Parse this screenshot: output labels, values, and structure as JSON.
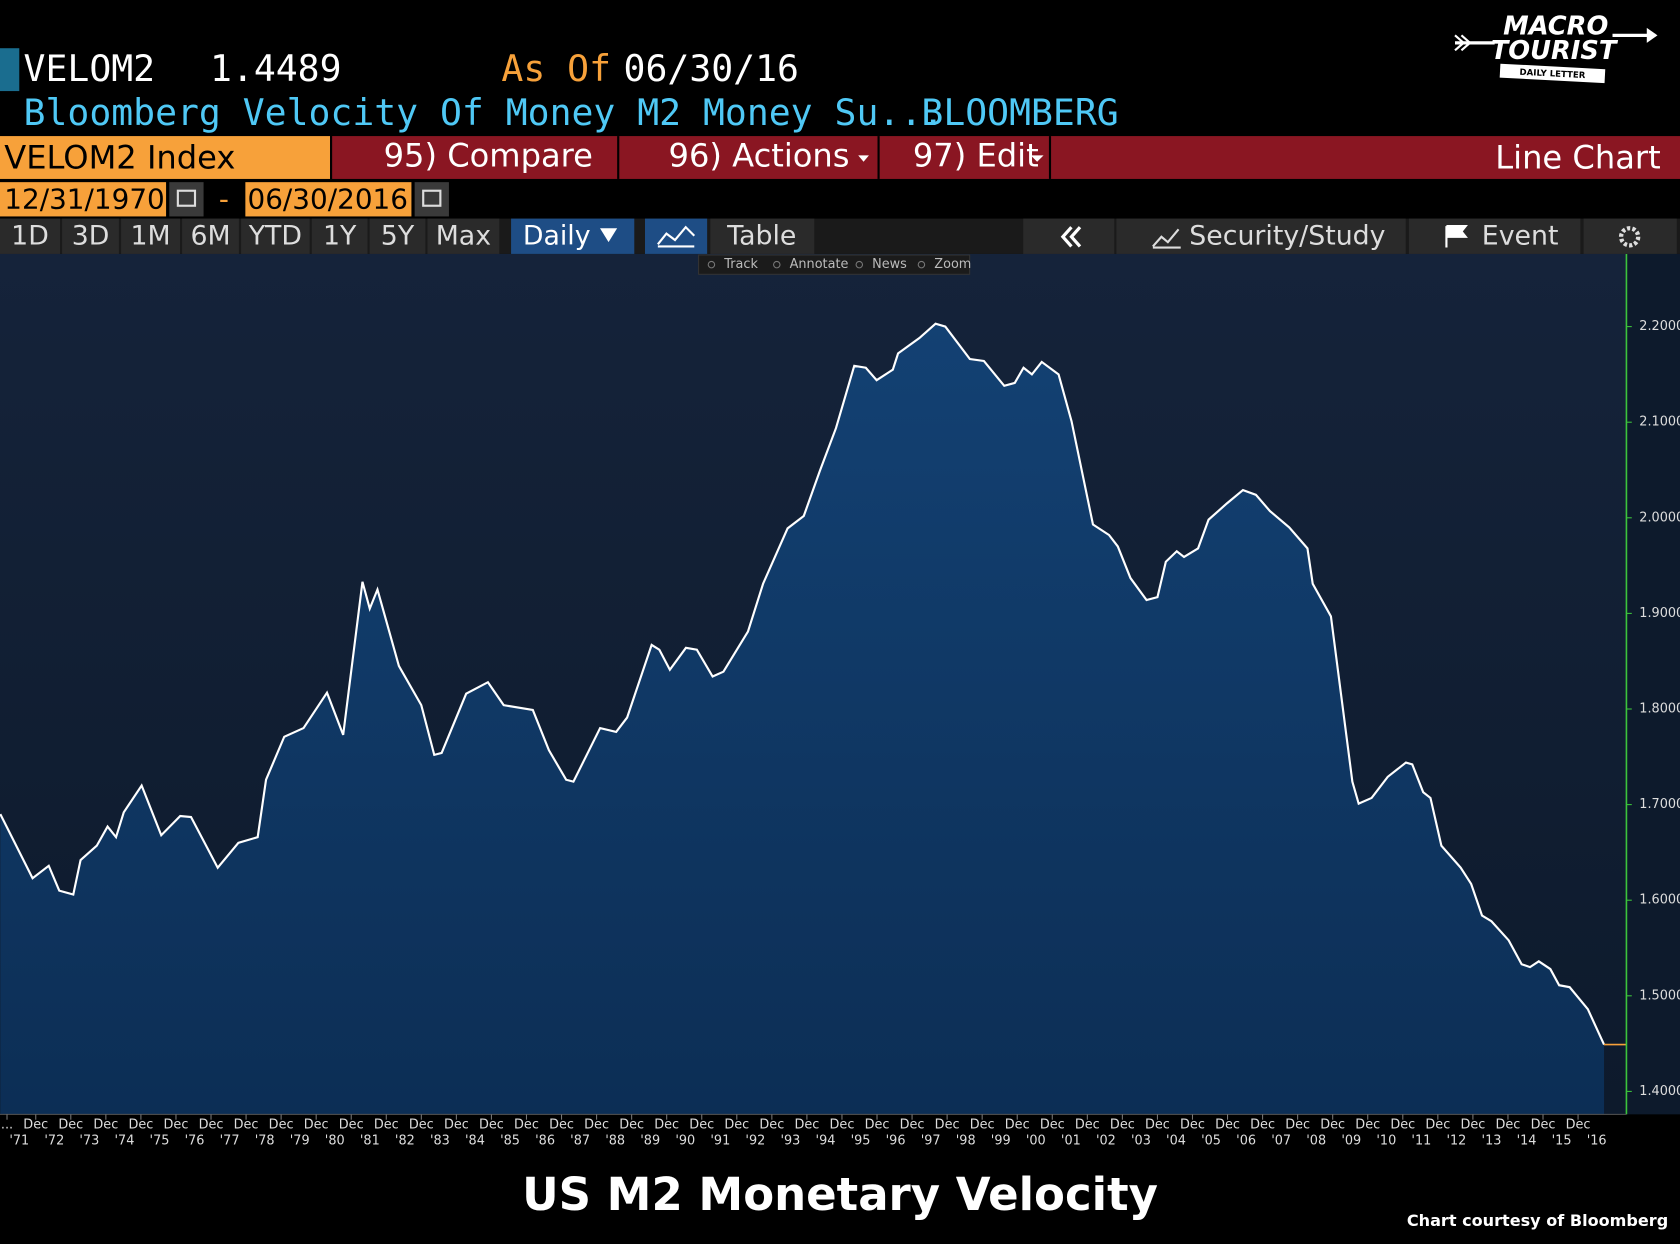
{
  "header": {
    "ticker": "VELOM2",
    "price": "1.4489",
    "as_of_label": "As Of",
    "as_of_date": "06/30/16",
    "description": "Bloomberg Velocity Of Money M2 Money Su...",
    "source": "BLOOMBERG"
  },
  "logo": {
    "line1": "MACRO",
    "line2": "TOURIST",
    "tagline": "DAILY LETTER"
  },
  "toolbar": {
    "security": "VELOM2 Index",
    "buttons": [
      "95) Compare",
      "96) Actions",
      "97) Edit"
    ],
    "view": "Line Chart"
  },
  "date_range": {
    "start": "12/31/1970",
    "separator": "-",
    "end": "06/30/2016"
  },
  "periods": [
    "1D",
    "3D",
    "1M",
    "6M",
    "YTD",
    "1Y",
    "5Y",
    "Max"
  ],
  "frequency": "Daily",
  "tabs": {
    "table": "Table",
    "security_study": "Security/Study",
    "event": "Event"
  },
  "chart_tools": [
    "Track",
    "Annotate",
    "News",
    "Zoom"
  ],
  "chart_data": {
    "type": "area",
    "color": "#ffffff",
    "fill": "#0e3462",
    "x": [
      1970.91,
      1971.83,
      1972.29,
      1972.59,
      1972.99,
      1973.2,
      1973.66,
      1973.97,
      1974.21,
      1974.43,
      1974.94,
      1975.5,
      1976.04,
      1976.35,
      1977.11,
      1977.7,
      1978.25,
      1978.49,
      1979.01,
      1979.56,
      1980.23,
      1980.69,
      1981.24,
      1981.45,
      1981.67,
      1982.28,
      1982.92,
      1983.29,
      1983.5,
      1984.2,
      1984.82,
      1985.27,
      1986.1,
      1986.56,
      1987.05,
      1987.26,
      1988.02,
      1988.48,
      1988.79,
      1989.49,
      1989.71,
      1990.01,
      1990.47,
      1990.78,
      1991.23,
      1991.54,
      1992.24,
      1992.67,
      1993.37,
      1993.83,
      1994.29,
      1994.75,
      1995.27,
      1995.6,
      1995.91,
      1996.37,
      1996.52,
      1997.13,
      1997.59,
      1997.87,
      1998.57,
      1998.97,
      1999.55,
      1999.85,
      2000.1,
      2000.34,
      2000.62,
      2001.1,
      2001.47,
      2002.08,
      2002.54,
      2002.79,
      2003.15,
      2003.61,
      2003.92,
      2004.16,
      2004.47,
      2004.68,
      2005.08,
      2005.38,
      2005.9,
      2006.36,
      2006.73,
      2007.13,
      2007.68,
      2008.2,
      2008.35,
      2008.87,
      2009.48,
      2009.66,
      2010.03,
      2010.49,
      2011.01,
      2011.19,
      2011.5,
      2011.71,
      2012.02,
      2012.57,
      2012.87,
      2013.18,
      2013.45,
      2013.94,
      2014.31,
      2014.55,
      2014.8,
      2015.13,
      2015.38,
      2015.68,
      2016.2,
      2016.66
    ],
    "values": [
      1.69,
      1.623,
      1.636,
      1.61,
      1.606,
      1.642,
      1.657,
      1.677,
      1.666,
      1.692,
      1.72,
      1.668,
      1.688,
      1.687,
      1.634,
      1.66,
      1.666,
      1.726,
      1.771,
      1.78,
      1.817,
      1.773,
      1.933,
      1.905,
      1.925,
      1.845,
      1.804,
      1.752,
      1.754,
      1.816,
      1.828,
      1.804,
      1.799,
      1.757,
      1.726,
      1.724,
      1.78,
      1.776,
      1.791,
      1.867,
      1.862,
      1.841,
      1.864,
      1.862,
      1.834,
      1.839,
      1.881,
      1.931,
      1.989,
      2.002,
      2.049,
      2.094,
      2.159,
      2.157,
      2.144,
      2.155,
      2.172,
      2.188,
      2.203,
      2.2,
      2.166,
      2.164,
      2.138,
      2.141,
      2.157,
      2.15,
      2.163,
      2.15,
      2.101,
      1.993,
      1.982,
      1.97,
      1.937,
      1.914,
      1.917,
      1.954,
      1.965,
      1.959,
      1.968,
      1.998,
      2.015,
      2.029,
      2.024,
      2.007,
      1.99,
      1.968,
      1.931,
      1.897,
      1.724,
      1.701,
      1.707,
      1.729,
      1.744,
      1.742,
      1.713,
      1.707,
      1.657,
      1.634,
      1.617,
      1.584,
      1.578,
      1.558,
      1.533,
      1.53,
      1.536,
      1.528,
      1.511,
      1.509,
      1.486,
      1.449
    ],
    "xlim": [
      1970.9,
      2017.3
    ],
    "ylim": [
      1.376,
      2.276
    ],
    "yticks": [
      {
        "value": 1.4,
        "label": "1.4000"
      },
      {
        "value": 1.5,
        "label": "1.5000"
      },
      {
        "value": 1.6,
        "label": "1.6000"
      },
      {
        "value": 1.7,
        "label": "1.7000"
      },
      {
        "value": 1.8,
        "label": "1.8000"
      },
      {
        "value": 1.9,
        "label": "1.9000"
      },
      {
        "value": 2.0,
        "label": "2.0000"
      },
      {
        "value": 2.1,
        "label": "2.1000"
      },
      {
        "value": 2.2,
        "label": "2.2000"
      }
    ],
    "xticks": [
      {
        "value": 1971.1,
        "label": "..."
      },
      {
        "value": 1971.92,
        "label": "Dec"
      },
      {
        "value": 1972.92,
        "label": "Dec"
      },
      {
        "value": 1973.92,
        "label": "Dec"
      },
      {
        "value": 1974.92,
        "label": "Dec"
      },
      {
        "value": 1975.92,
        "label": "Dec"
      },
      {
        "value": 1976.92,
        "label": "Dec"
      },
      {
        "value": 1977.92,
        "label": "Dec"
      },
      {
        "value": 1978.92,
        "label": "Dec"
      },
      {
        "value": 1979.92,
        "label": "Dec"
      },
      {
        "value": 1980.92,
        "label": "Dec"
      },
      {
        "value": 1981.92,
        "label": "Dec"
      },
      {
        "value": 1982.92,
        "label": "Dec"
      },
      {
        "value": 1983.92,
        "label": "Dec"
      },
      {
        "value": 1984.92,
        "label": "Dec"
      },
      {
        "value": 1985.92,
        "label": "Dec"
      },
      {
        "value": 1986.92,
        "label": "Dec"
      },
      {
        "value": 1987.92,
        "label": "Dec"
      },
      {
        "value": 1988.92,
        "label": "Dec"
      },
      {
        "value": 1989.92,
        "label": "Dec"
      },
      {
        "value": 1990.92,
        "label": "Dec"
      },
      {
        "value": 1991.92,
        "label": "Dec"
      },
      {
        "value": 1992.92,
        "label": "Dec"
      },
      {
        "value": 1993.92,
        "label": "Dec"
      },
      {
        "value": 1994.92,
        "label": "Dec"
      },
      {
        "value": 1995.92,
        "label": "Dec"
      },
      {
        "value": 1996.92,
        "label": "Dec"
      },
      {
        "value": 1997.92,
        "label": "Dec"
      },
      {
        "value": 1998.92,
        "label": "Dec"
      },
      {
        "value": 1999.92,
        "label": "Dec"
      },
      {
        "value": 2000.92,
        "label": "Dec"
      },
      {
        "value": 2001.92,
        "label": "Dec"
      },
      {
        "value": 2002.92,
        "label": "Dec"
      },
      {
        "value": 2003.92,
        "label": "Dec"
      },
      {
        "value": 2004.92,
        "label": "Dec"
      },
      {
        "value": 2005.92,
        "label": "Dec"
      },
      {
        "value": 2006.92,
        "label": "Dec"
      },
      {
        "value": 2007.92,
        "label": "Dec"
      },
      {
        "value": 2008.92,
        "label": "Dec"
      },
      {
        "value": 2009.92,
        "label": "Dec"
      },
      {
        "value": 2010.92,
        "label": "Dec"
      },
      {
        "value": 2011.92,
        "label": "Dec"
      },
      {
        "value": 2012.92,
        "label": "Dec"
      },
      {
        "value": 2013.92,
        "label": "Dec"
      },
      {
        "value": 2014.92,
        "label": "Dec"
      },
      {
        "value": 2015.92,
        "label": "Dec"
      }
    ],
    "x_year_ticks": [
      {
        "value": 1971.45,
        "label": "'71"
      },
      {
        "value": 1972.45,
        "label": "'72"
      },
      {
        "value": 1973.45,
        "label": "'73"
      },
      {
        "value": 1974.45,
        "label": "'74"
      },
      {
        "value": 1975.45,
        "label": "'75"
      },
      {
        "value": 1976.45,
        "label": "'76"
      },
      {
        "value": 1977.45,
        "label": "'77"
      },
      {
        "value": 1978.45,
        "label": "'78"
      },
      {
        "value": 1979.45,
        "label": "'79"
      },
      {
        "value": 1980.45,
        "label": "'80"
      },
      {
        "value": 1981.45,
        "label": "'81"
      },
      {
        "value": 1982.45,
        "label": "'82"
      },
      {
        "value": 1983.45,
        "label": "'83"
      },
      {
        "value": 1984.45,
        "label": "'84"
      },
      {
        "value": 1985.45,
        "label": "'85"
      },
      {
        "value": 1986.45,
        "label": "'86"
      },
      {
        "value": 1987.45,
        "label": "'87"
      },
      {
        "value": 1988.45,
        "label": "'88"
      },
      {
        "value": 1989.45,
        "label": "'89"
      },
      {
        "value": 1990.45,
        "label": "'90"
      },
      {
        "value": 1991.45,
        "label": "'91"
      },
      {
        "value": 1992.45,
        "label": "'92"
      },
      {
        "value": 1993.45,
        "label": "'93"
      },
      {
        "value": 1994.45,
        "label": "'94"
      },
      {
        "value": 1995.45,
        "label": "'95"
      },
      {
        "value": 1996.45,
        "label": "'96"
      },
      {
        "value": 1997.45,
        "label": "'97"
      },
      {
        "value": 1998.45,
        "label": "'98"
      },
      {
        "value": 1999.45,
        "label": "'99"
      },
      {
        "value": 2000.45,
        "label": "'00"
      },
      {
        "value": 2001.45,
        "label": "'01"
      },
      {
        "value": 2002.45,
        "label": "'02"
      },
      {
        "value": 2003.45,
        "label": "'03"
      },
      {
        "value": 2004.45,
        "label": "'04"
      },
      {
        "value": 2005.45,
        "label": "'05"
      },
      {
        "value": 2006.45,
        "label": "'06"
      },
      {
        "value": 2007.45,
        "label": "'07"
      },
      {
        "value": 2008.45,
        "label": "'08"
      },
      {
        "value": 2009.45,
        "label": "'09"
      },
      {
        "value": 2010.45,
        "label": "'10"
      },
      {
        "value": 2011.45,
        "label": "'11"
      },
      {
        "value": 2012.45,
        "label": "'12"
      },
      {
        "value": 2013.45,
        "label": "'13"
      },
      {
        "value": 2014.45,
        "label": "'14"
      },
      {
        "value": 2015.45,
        "label": "'15"
      },
      {
        "value": 2016.45,
        "label": "'16"
      }
    ],
    "grid": false,
    "title": "US M2 Monetary Velocity",
    "credit": "Chart courtesy of Bloomberg"
  }
}
